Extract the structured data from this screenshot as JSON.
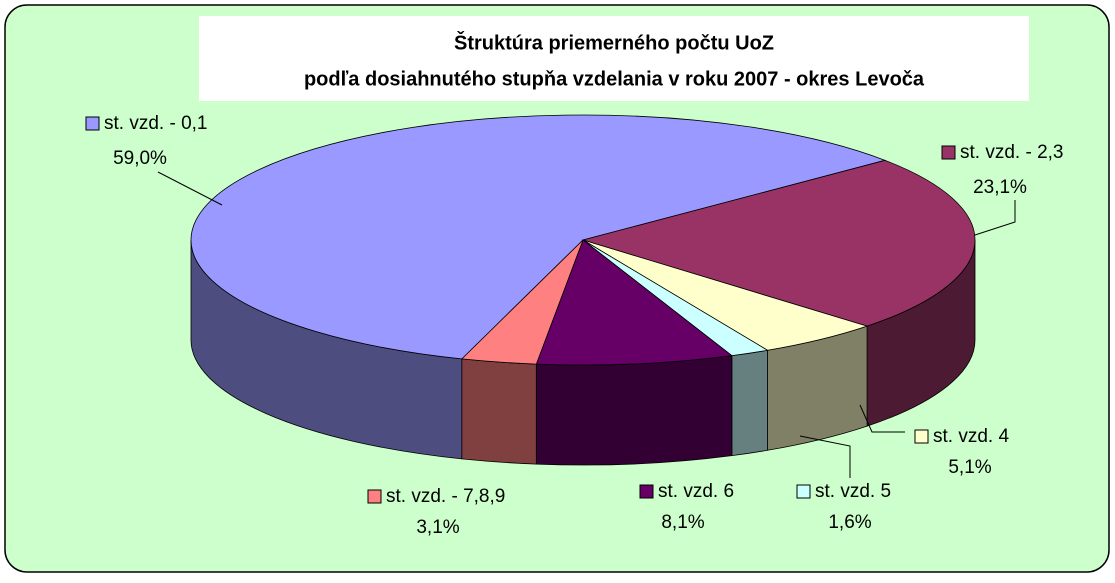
{
  "chart_data": {
    "type": "pie3d",
    "title": [
      "Štruktúra priemerného počtu UoZ",
      "podľa dosiahnutého stupňa vzdelania v roku 2007 - okres Levoča"
    ],
    "categories": [
      "st. vzd. - 0,1",
      "st. vzd. - 2,3",
      "st. vzd. 4",
      "st. vzd. 5",
      "st. vzd. 6",
      "st. vzd. - 7,8,9"
    ],
    "values": [
      59.0,
      23.1,
      5.1,
      1.6,
      8.1,
      3.1
    ],
    "value_labels": [
      "59,0%",
      "23,1%",
      "5,1%",
      "1,6%",
      "8,1%",
      "3,1%"
    ],
    "colors": [
      "#9999ff",
      "#993366",
      "#ffffcc",
      "#ccffff",
      "#660066",
      "#ff8080"
    ]
  }
}
